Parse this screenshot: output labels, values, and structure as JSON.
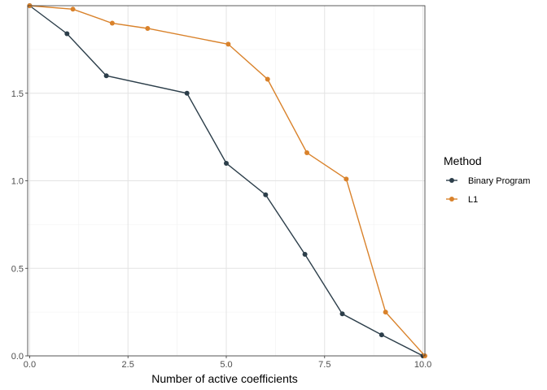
{
  "chart_data": {
    "type": "line",
    "xlabel": "Number of active coefficients",
    "ylabel": "",
    "xlim": [
      -0.05,
      10.05
    ],
    "ylim": [
      0,
      2.0
    ],
    "x_ticks": [
      "0.0",
      "2.5",
      "5.0",
      "7.5",
      "10.0"
    ],
    "x_tick_values": [
      0,
      2.5,
      5,
      7.5,
      10
    ],
    "y_ticks": [
      "0.0",
      "0.5",
      "1.0",
      "1.5"
    ],
    "y_tick_values": [
      0,
      0.5,
      1.0,
      1.5
    ],
    "grid": true,
    "legend": {
      "title": "Method",
      "position": "right"
    },
    "series": [
      {
        "name": "Binary Program",
        "color": "#2c3e4a",
        "x": [
          0,
          0.95,
          1.95,
          4.0,
          5.0,
          6.0,
          7.0,
          7.95,
          8.95,
          10.0
        ],
        "y": [
          2.0,
          1.84,
          1.6,
          1.5,
          1.1,
          0.92,
          0.58,
          0.24,
          0.12,
          0.0
        ]
      },
      {
        "name": "L1",
        "color": "#d9822b",
        "x": [
          0,
          1.1,
          2.1,
          3.0,
          5.05,
          6.05,
          7.05,
          8.05,
          9.05,
          10.05
        ],
        "y": [
          2.0,
          1.98,
          1.9,
          1.87,
          1.78,
          1.58,
          1.16,
          1.01,
          0.25,
          0.0
        ]
      }
    ]
  }
}
